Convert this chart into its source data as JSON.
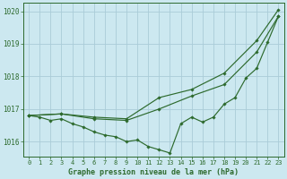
{
  "title": "Graphe pression niveau de la mer (hPa)",
  "bg_color": "#cce8f0",
  "grid_color": "#aaccd8",
  "line_color": "#2d6a2d",
  "xlim": [
    -0.5,
    23.5
  ],
  "ylim": [
    1015.55,
    1020.25
  ],
  "yticks": [
    1016,
    1017,
    1018,
    1019,
    1020
  ],
  "xticks": [
    0,
    1,
    2,
    3,
    4,
    5,
    6,
    7,
    8,
    9,
    10,
    11,
    12,
    13,
    14,
    15,
    16,
    17,
    18,
    19,
    20,
    21,
    22,
    23
  ],
  "series": [
    {
      "x": [
        0,
        3,
        6,
        9,
        12,
        15,
        18,
        21,
        23
      ],
      "y": [
        1016.8,
        1016.85,
        1016.75,
        1016.7,
        1017.35,
        1017.6,
        1018.1,
        1019.1,
        1020.05
      ]
    },
    {
      "x": [
        0,
        3,
        6,
        9,
        12,
        15,
        18,
        21,
        23
      ],
      "y": [
        1016.8,
        1016.85,
        1016.7,
        1016.65,
        1017.0,
        1017.4,
        1017.75,
        1018.75,
        1019.85
      ]
    },
    {
      "x": [
        0,
        1,
        2,
        3,
        4,
        5,
        6,
        7,
        8,
        9,
        10,
        11,
        12,
        13,
        14,
        15,
        16,
        17,
        18,
        19,
        20,
        21,
        22,
        23
      ],
      "y": [
        1016.8,
        1016.75,
        1016.65,
        1016.7,
        1016.55,
        1016.45,
        1016.3,
        1016.2,
        1016.15,
        1016.0,
        1016.05,
        1015.85,
        1015.75,
        1015.65,
        1016.55,
        1016.75,
        1016.6,
        1016.75,
        1017.15,
        1017.35,
        1017.95,
        1018.25,
        1019.05,
        1019.85
      ]
    }
  ]
}
